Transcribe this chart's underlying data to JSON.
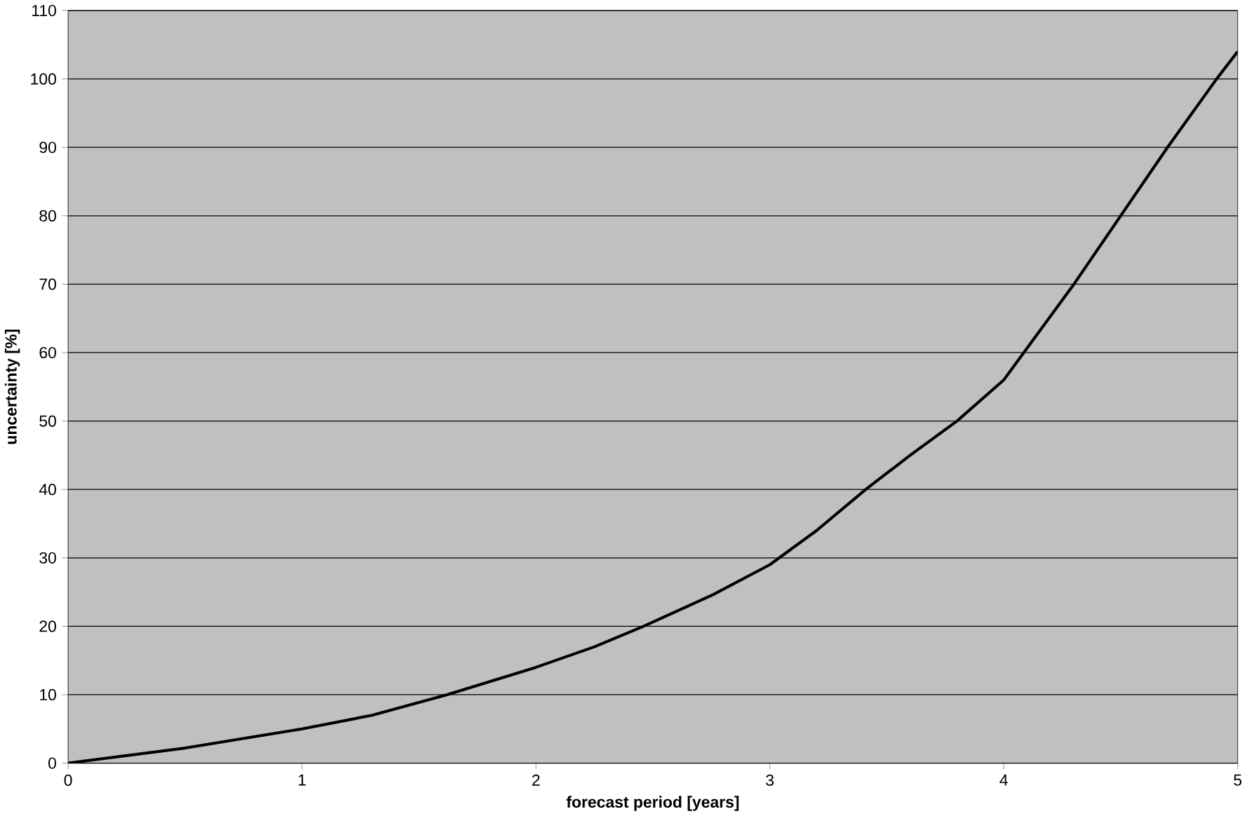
{
  "chart_data": {
    "type": "line",
    "xlabel": "forecast period [years]",
    "ylabel": "uncertainty [%]",
    "xlim": [
      0,
      5
    ],
    "ylim": [
      0,
      110
    ],
    "xticks": [
      0,
      1,
      2,
      3,
      4,
      5
    ],
    "yticks": [
      0,
      10,
      20,
      30,
      40,
      50,
      60,
      70,
      80,
      90,
      100,
      110
    ],
    "grid": "y",
    "marker": "none",
    "line_style": "solid",
    "series": [
      {
        "color": "#000000",
        "x": [
          0,
          0.5,
          1,
          1.3,
          1.62,
          2,
          2.25,
          2.46,
          2.75,
          3,
          3.2,
          3.41,
          3.6,
          3.8,
          4.0,
          4.3,
          4.5,
          4.7,
          4.91,
          5
        ],
        "values": [
          0,
          2.2,
          5,
          7,
          10,
          14,
          17,
          20,
          24.5,
          29,
          34,
          40,
          45,
          50,
          56,
          70,
          80,
          90,
          100,
          104
        ]
      }
    ]
  }
}
